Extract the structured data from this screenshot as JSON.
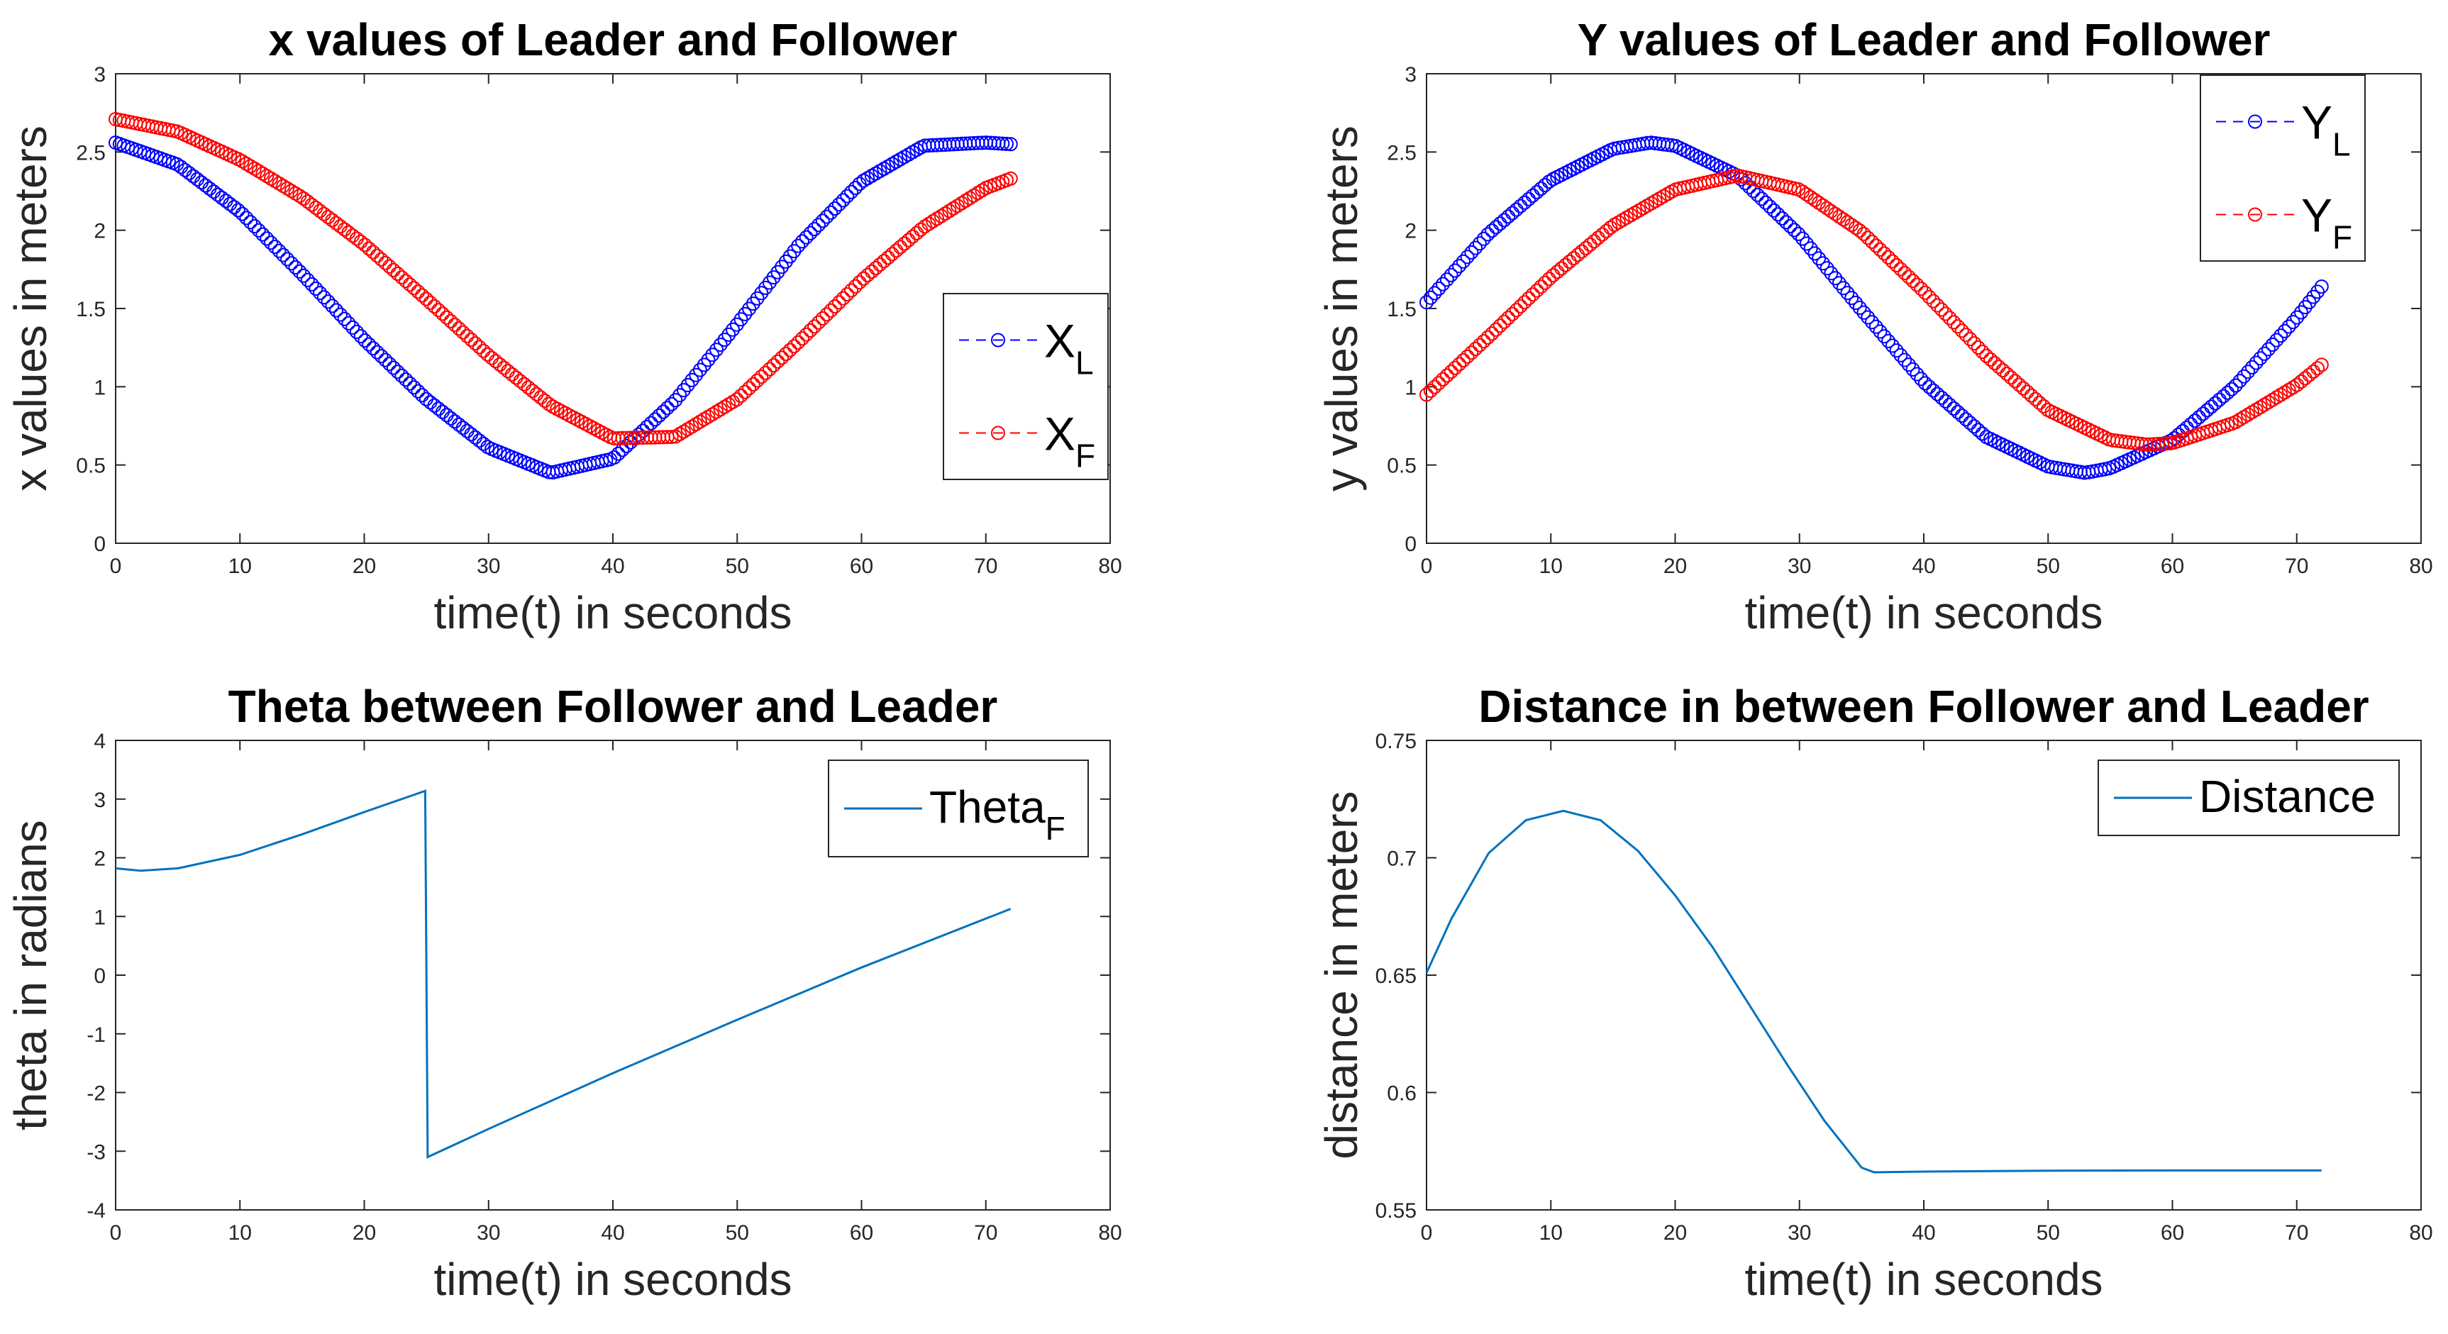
{
  "chart_data": [
    {
      "type": "scatter",
      "title": "x values of Leader and Follower",
      "xlabel": "time(t) in seconds",
      "ylabel": "x values in meters",
      "xlim": [
        0,
        80
      ],
      "ylim": [
        0,
        3
      ],
      "xticks": [
        "0",
        "10",
        "20",
        "30",
        "40",
        "50",
        "60",
        "70",
        "80"
      ],
      "yticks": [
        "0",
        "0.5",
        "1",
        "1.5",
        "2",
        "2.5",
        "3"
      ],
      "legend_position": "right",
      "series": [
        {
          "name": "X",
          "sub": "L",
          "color": "#0000ff",
          "marker": "circle",
          "style": "dashed",
          "x": [
            0,
            5,
            10,
            15,
            20,
            25,
            30,
            35,
            40,
            45,
            50,
            55,
            60,
            65,
            70,
            72
          ],
          "values": [
            2.56,
            2.42,
            2.12,
            1.72,
            1.3,
            0.92,
            0.61,
            0.45,
            0.54,
            0.91,
            1.4,
            1.91,
            2.31,
            2.54,
            2.56,
            2.55
          ]
        },
        {
          "name": "X",
          "sub": "F",
          "color": "#ff0000",
          "marker": "circle",
          "style": "dashed",
          "x": [
            0,
            5,
            10,
            15,
            20,
            25,
            30,
            35,
            40,
            45,
            50,
            55,
            60,
            65,
            70,
            72
          ],
          "values": [
            2.71,
            2.63,
            2.45,
            2.21,
            1.91,
            1.56,
            1.2,
            0.88,
            0.67,
            0.68,
            0.92,
            1.29,
            1.68,
            2.02,
            2.27,
            2.33
          ]
        }
      ]
    },
    {
      "type": "scatter",
      "title": "Y values of Leader and Follower",
      "xlabel": "time(t) in seconds",
      "ylabel": "y values in meters",
      "xlim": [
        0,
        80
      ],
      "ylim": [
        0,
        3
      ],
      "xticks": [
        "0",
        "10",
        "20",
        "30",
        "40",
        "50",
        "60",
        "70",
        "80"
      ],
      "yticks": [
        "0",
        "0.5",
        "1",
        "1.5",
        "2",
        "2.5",
        "3"
      ],
      "legend_position": "top-right",
      "series": [
        {
          "name": "Y",
          "sub": "L",
          "color": "#0000ff",
          "marker": "circle",
          "style": "dashed",
          "x": [
            0,
            5,
            10,
            15,
            18,
            20,
            25,
            30,
            35,
            40,
            45,
            50,
            53,
            55,
            60,
            65,
            70,
            72
          ],
          "values": [
            1.54,
            1.98,
            2.32,
            2.52,
            2.56,
            2.54,
            2.35,
            1.97,
            1.49,
            1.03,
            0.68,
            0.49,
            0.45,
            0.48,
            0.66,
            1.0,
            1.44,
            1.64
          ]
        },
        {
          "name": "Y",
          "sub": "F",
          "color": "#ff0000",
          "marker": "circle",
          "style": "dashed",
          "x": [
            0,
            5,
            10,
            15,
            20,
            25,
            30,
            35,
            40,
            45,
            50,
            55,
            58,
            60,
            65,
            70,
            72
          ],
          "values": [
            0.95,
            1.32,
            1.7,
            2.03,
            2.26,
            2.35,
            2.26,
            1.99,
            1.61,
            1.2,
            0.85,
            0.66,
            0.63,
            0.64,
            0.77,
            1.01,
            1.14
          ]
        }
      ]
    },
    {
      "type": "line",
      "title": "Theta between Follower and Leader",
      "xlabel": "time(t) in seconds",
      "ylabel": "theta in radians",
      "xlim": [
        0,
        80
      ],
      "ylim": [
        -4,
        4
      ],
      "xticks": [
        "0",
        "10",
        "20",
        "30",
        "40",
        "50",
        "60",
        "70",
        "80"
      ],
      "yticks": [
        "-4",
        "-3",
        "-2",
        "-1",
        "0",
        "1",
        "2",
        "3",
        "4"
      ],
      "legend_position": "top-right",
      "series": [
        {
          "name": "Theta",
          "sub": "F",
          "color": "#0072bd",
          "x": [
            0,
            2,
            5,
            10,
            15,
            20,
            24.9,
            25.1,
            30,
            40,
            50,
            60,
            72
          ],
          "values": [
            1.82,
            1.78,
            1.82,
            2.05,
            2.4,
            2.78,
            3.14,
            -3.1,
            -2.62,
            -1.67,
            -0.76,
            0.13,
            1.13
          ]
        }
      ]
    },
    {
      "type": "line",
      "title": "Distance in between Follower and Leader",
      "xlabel": "time(t) in seconds",
      "ylabel": "distance in meters",
      "xlim": [
        0,
        80
      ],
      "ylim": [
        0.55,
        0.75
      ],
      "xticks": [
        "0",
        "10",
        "20",
        "30",
        "40",
        "50",
        "60",
        "70",
        "80"
      ],
      "yticks": [
        "0.55",
        "0.6",
        "0.65",
        "0.7",
        "0.75"
      ],
      "legend_position": "top-right",
      "series": [
        {
          "name": "Distance",
          "sub": "",
          "color": "#0072bd",
          "x": [
            0,
            2,
            5,
            8,
            11,
            14,
            17,
            20,
            23,
            26,
            29,
            32,
            35,
            36,
            40,
            50,
            60,
            72
          ],
          "values": [
            0.651,
            0.674,
            0.702,
            0.716,
            0.72,
            0.716,
            0.703,
            0.684,
            0.662,
            0.637,
            0.612,
            0.588,
            0.568,
            0.566,
            0.5663,
            0.5667,
            0.5668,
            0.5668
          ]
        }
      ]
    }
  ]
}
